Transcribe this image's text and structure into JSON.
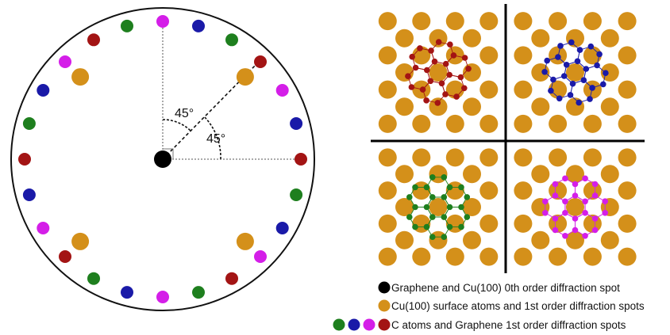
{
  "diagram": {
    "angle_labels": [
      "45°",
      "45°"
    ],
    "colors": {
      "cu": "#D4901A",
      "black": "#000000",
      "green": "#1E7F1E",
      "blue": "#1A1AA8",
      "magenta": "#D41EE8",
      "red": "#A31414",
      "line": "#111111"
    },
    "ring_spot_colors": [
      "magenta",
      "blue",
      "green",
      "red",
      "magenta",
      "blue",
      "red",
      "green",
      "blue",
      "magenta",
      "red",
      "green"
    ],
    "panels": [
      {
        "name": "red-panel",
        "color": "red"
      },
      {
        "name": "blue-panel",
        "color": "blue"
      },
      {
        "name": "green-panel",
        "color": "green"
      },
      {
        "name": "magenta-panel",
        "color": "magenta"
      }
    ]
  },
  "legend": [
    {
      "swatches": [
        "black"
      ],
      "text": "Graphene and Cu(100) 0th order diffraction spot"
    },
    {
      "swatches": [
        "cu"
      ],
      "text": "Cu(100) surface atoms and 1st order diffraction spots"
    },
    {
      "swatches": [
        "green",
        "blue",
        "magenta",
        "red"
      ],
      "text": "C atoms and Graphene 1st order diffraction spots"
    }
  ]
}
